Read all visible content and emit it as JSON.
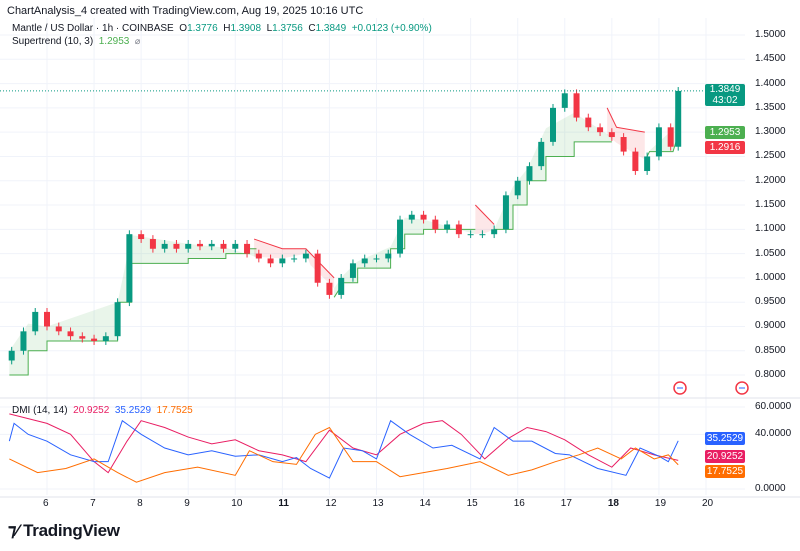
{
  "header": {
    "caption": "ChartAnalysis_4 created with TradingView.com, Aug 19, 2025 10:16 UTC",
    "symbol": "Mantle / US Dollar · 1h · COINBASE",
    "o_label": "O",
    "o": "1.3776",
    "h_label": "H",
    "h": "1.3908",
    "l_label": "L",
    "l": "1.3756",
    "c_label": "C",
    "c": "1.3849",
    "change": "+0.0123 (+0.90%)",
    "supertrend_label": "Supertrend (10, 3)",
    "supertrend_value": "1.2953",
    "dmi_label": "DMI (14, 14)",
    "dmi_adx": "20.9252",
    "dmi_plus": "35.2529",
    "dmi_minus": "17.7525"
  },
  "price_tags": {
    "last": "1.3849",
    "countdown": "43:02",
    "supertrend_up": "1.2953",
    "supertrend_down": "1.2916"
  },
  "dmi_tags": {
    "plus": "35.2529",
    "adx": "20.9252",
    "minus": "17.7525"
  },
  "footer": {
    "brand": "TradingView"
  },
  "colors": {
    "up": "#089981",
    "down": "#f23645",
    "st_up": "#4caf50",
    "st_down": "#f23645",
    "adx": "#e91e63",
    "di_plus": "#2962ff",
    "di_minus": "#ff6d00"
  },
  "chart_data": [
    {
      "type": "candlestick",
      "title": "Mantle / US Dollar · 1h · COINBASE",
      "y_ticks": [
        "1.5000",
        "1.4500",
        "1.4000",
        "1.3500",
        "1.3000",
        "1.2500",
        "1.2000",
        "1.1500",
        "1.1000",
        "1.0500",
        "1.0000",
        "0.9500",
        "0.9000",
        "0.8500",
        "0.8000"
      ],
      "ylim": [
        0.78,
        1.52
      ],
      "x_ticks": [
        "6",
        "7",
        "8",
        "9",
        "10",
        "11",
        "12",
        "13",
        "14",
        "15",
        "16",
        "17",
        "18",
        "19",
        "20"
      ],
      "grid": true,
      "close": [
        [
          5.25,
          0.85
        ],
        [
          5.5,
          0.89
        ],
        [
          5.75,
          0.93
        ],
        [
          6.0,
          0.9
        ],
        [
          6.25,
          0.89
        ],
        [
          6.5,
          0.88
        ],
        [
          6.75,
          0.875
        ],
        [
          7.0,
          0.87
        ],
        [
          7.25,
          0.88
        ],
        [
          7.5,
          0.95
        ],
        [
          7.75,
          1.09
        ],
        [
          8.0,
          1.08
        ],
        [
          8.25,
          1.06
        ],
        [
          8.5,
          1.07
        ],
        [
          8.75,
          1.06
        ],
        [
          9.0,
          1.07
        ],
        [
          9.25,
          1.065
        ],
        [
          9.5,
          1.07
        ],
        [
          9.75,
          1.06
        ],
        [
          10.0,
          1.07
        ],
        [
          10.25,
          1.05
        ],
        [
          10.5,
          1.04
        ],
        [
          10.75,
          1.03
        ],
        [
          11.0,
          1.04
        ],
        [
          11.25,
          1.04
        ],
        [
          11.5,
          1.05
        ],
        [
          11.75,
          0.99
        ],
        [
          12.0,
          0.965
        ],
        [
          12.25,
          1.0
        ],
        [
          12.5,
          1.03
        ],
        [
          12.75,
          1.04
        ],
        [
          13.0,
          1.04
        ],
        [
          13.25,
          1.05
        ],
        [
          13.5,
          1.12
        ],
        [
          13.75,
          1.13
        ],
        [
          14.0,
          1.12
        ],
        [
          14.25,
          1.1
        ],
        [
          14.5,
          1.11
        ],
        [
          14.75,
          1.09
        ],
        [
          15.0,
          1.09
        ],
        [
          15.25,
          1.09
        ],
        [
          15.5,
          1.1
        ],
        [
          15.75,
          1.17
        ],
        [
          16.0,
          1.2
        ],
        [
          16.25,
          1.23
        ],
        [
          16.5,
          1.28
        ],
        [
          16.75,
          1.35
        ],
        [
          17.0,
          1.38
        ],
        [
          17.25,
          1.33
        ],
        [
          17.5,
          1.31
        ],
        [
          17.75,
          1.3
        ],
        [
          18.0,
          1.29
        ],
        [
          18.25,
          1.26
        ],
        [
          18.5,
          1.22
        ],
        [
          18.75,
          1.25
        ],
        [
          19.0,
          1.31
        ],
        [
          19.25,
          1.27
        ],
        [
          19.41,
          1.3849
        ]
      ],
      "supertrend": {
        "name": "Supertrend (10, 3)",
        "segments": [
          {
            "direction": "up",
            "points": [
              [
                5.2,
                0.8
              ],
              [
                5.6,
                0.8
              ],
              [
                5.6,
                0.85
              ],
              [
                6.0,
                0.85
              ],
              [
                6.0,
                0.87
              ],
              [
                7.5,
                0.87
              ],
              [
                7.5,
                0.95
              ],
              [
                7.8,
                0.95
              ],
              [
                7.8,
                1.03
              ],
              [
                9.0,
                1.03
              ],
              [
                9.0,
                1.04
              ],
              [
                9.8,
                1.04
              ],
              [
                9.8,
                1.05
              ],
              [
                10.3,
                1.05
              ],
              [
                10.3,
                1.06
              ],
              [
                10.45,
                1.06
              ]
            ]
          },
          {
            "direction": "down",
            "points": [
              [
                10.4,
                1.08
              ],
              [
                11.0,
                1.06
              ],
              [
                11.5,
                1.06
              ],
              [
                11.6,
                1.05
              ],
              [
                12.1,
                1.0
              ]
            ]
          },
          {
            "direction": "up",
            "points": [
              [
                12.1,
                0.96
              ],
              [
                12.3,
                0.99
              ],
              [
                12.6,
                0.99
              ],
              [
                12.6,
                1.02
              ],
              [
                13.3,
                1.02
              ],
              [
                13.3,
                1.06
              ],
              [
                13.6,
                1.06
              ],
              [
                13.6,
                1.09
              ],
              [
                14.0,
                1.09
              ],
              [
                14.0,
                1.1
              ],
              [
                15.1,
                1.1
              ]
            ]
          },
          {
            "direction": "down",
            "points": [
              [
                15.1,
                1.15
              ],
              [
                15.3,
                1.13
              ],
              [
                15.5,
                1.11
              ]
            ]
          },
          {
            "direction": "up",
            "points": [
              [
                15.5,
                1.1
              ],
              [
                15.9,
                1.1
              ],
              [
                15.9,
                1.15
              ],
              [
                16.2,
                1.15
              ],
              [
                16.2,
                1.2
              ],
              [
                16.6,
                1.2
              ],
              [
                16.6,
                1.25
              ],
              [
                17.2,
                1.25
              ],
              [
                17.2,
                1.28
              ],
              [
                18.0,
                1.28
              ]
            ]
          },
          {
            "direction": "down",
            "points": [
              [
                17.9,
                1.35
              ],
              [
                18.1,
                1.31
              ],
              [
                18.7,
                1.3
              ]
            ]
          },
          {
            "direction": "up",
            "points": [
              [
                18.7,
                1.24
              ],
              [
                18.8,
                1.26
              ],
              [
                19.3,
                1.26
              ],
              [
                19.41,
                1.2953
              ]
            ]
          }
        ]
      }
    },
    {
      "type": "line",
      "title": "DMI (14, 14)",
      "y_ticks": [
        "60.0000",
        "40.0000",
        "0.0000"
      ],
      "ylim": [
        0,
        60
      ],
      "grid": true,
      "series": [
        {
          "color": "#e91e63",
          "values": [
            [
              5.2,
              55
            ],
            [
              6.0,
              48
            ],
            [
              6.5,
              40
            ],
            [
              7.0,
              20
            ],
            [
              7.3,
              12
            ],
            [
              7.7,
              35
            ],
            [
              8.0,
              50
            ],
            [
              8.5,
              45
            ],
            [
              9.0,
              38
            ],
            [
              9.5,
              33
            ],
            [
              10.0,
              36
            ],
            [
              10.5,
              28
            ],
            [
              11.0,
              25
            ],
            [
              11.5,
              20
            ],
            [
              12.0,
              43
            ],
            [
              12.5,
              30
            ],
            [
              13.0,
              25
            ],
            [
              13.5,
              40
            ],
            [
              14.0,
              48
            ],
            [
              14.4,
              50
            ],
            [
              14.8,
              40
            ],
            [
              15.3,
              22
            ],
            [
              15.8,
              37
            ],
            [
              16.2,
              45
            ],
            [
              16.6,
              42
            ],
            [
              17.0,
              36
            ],
            [
              17.5,
              25
            ],
            [
              18.0,
              16
            ],
            [
              18.4,
              30
            ],
            [
              18.9,
              25
            ],
            [
              19.41,
              20.9252
            ]
          ]
        },
        {
          "color": "#2962ff",
          "values": [
            [
              5.2,
              35
            ],
            [
              5.3,
              48
            ],
            [
              5.6,
              40
            ],
            [
              6.0,
              35
            ],
            [
              6.5,
              25
            ],
            [
              7.0,
              20
            ],
            [
              7.3,
              20
            ],
            [
              7.6,
              50
            ],
            [
              8.0,
              40
            ],
            [
              8.5,
              30
            ],
            [
              9.0,
              25
            ],
            [
              9.5,
              28
            ],
            [
              10.0,
              24
            ],
            [
              10.5,
              25
            ],
            [
              11.0,
              20
            ],
            [
              11.3,
              23
            ],
            [
              11.6,
              15
            ],
            [
              12.0,
              8
            ],
            [
              12.3,
              30
            ],
            [
              12.7,
              28
            ],
            [
              13.0,
              22
            ],
            [
              13.3,
              50
            ],
            [
              13.7,
              40
            ],
            [
              14.2,
              30
            ],
            [
              14.6,
              32
            ],
            [
              15.2,
              22
            ],
            [
              15.5,
              45
            ],
            [
              15.9,
              35
            ],
            [
              16.3,
              35
            ],
            [
              16.8,
              26
            ],
            [
              17.1,
              25
            ],
            [
              17.7,
              15
            ],
            [
              18.3,
              10
            ],
            [
              18.6,
              30
            ],
            [
              19.0,
              24
            ],
            [
              19.2,
              20
            ],
            [
              19.41,
              35.2529
            ]
          ]
        },
        {
          "color": "#ff6d00",
          "values": [
            [
              5.2,
              22
            ],
            [
              5.8,
              12
            ],
            [
              6.4,
              15
            ],
            [
              7.0,
              22
            ],
            [
              7.5,
              12
            ],
            [
              7.9,
              5
            ],
            [
              8.5,
              12
            ],
            [
              9.2,
              16
            ],
            [
              10.0,
              10
            ],
            [
              10.3,
              28
            ],
            [
              10.8,
              20
            ],
            [
              11.3,
              18
            ],
            [
              11.7,
              40
            ],
            [
              12.0,
              45
            ],
            [
              12.5,
              20
            ],
            [
              13.0,
              20
            ],
            [
              13.5,
              9
            ],
            [
              14.0,
              12
            ],
            [
              14.5,
              15
            ],
            [
              15.2,
              20
            ],
            [
              15.8,
              10
            ],
            [
              16.3,
              14
            ],
            [
              16.8,
              20
            ],
            [
              17.3,
              25
            ],
            [
              17.7,
              30
            ],
            [
              18.2,
              22
            ],
            [
              18.5,
              30
            ],
            [
              18.9,
              22
            ],
            [
              19.2,
              25
            ],
            [
              19.41,
              17.7525
            ]
          ]
        }
      ]
    }
  ]
}
